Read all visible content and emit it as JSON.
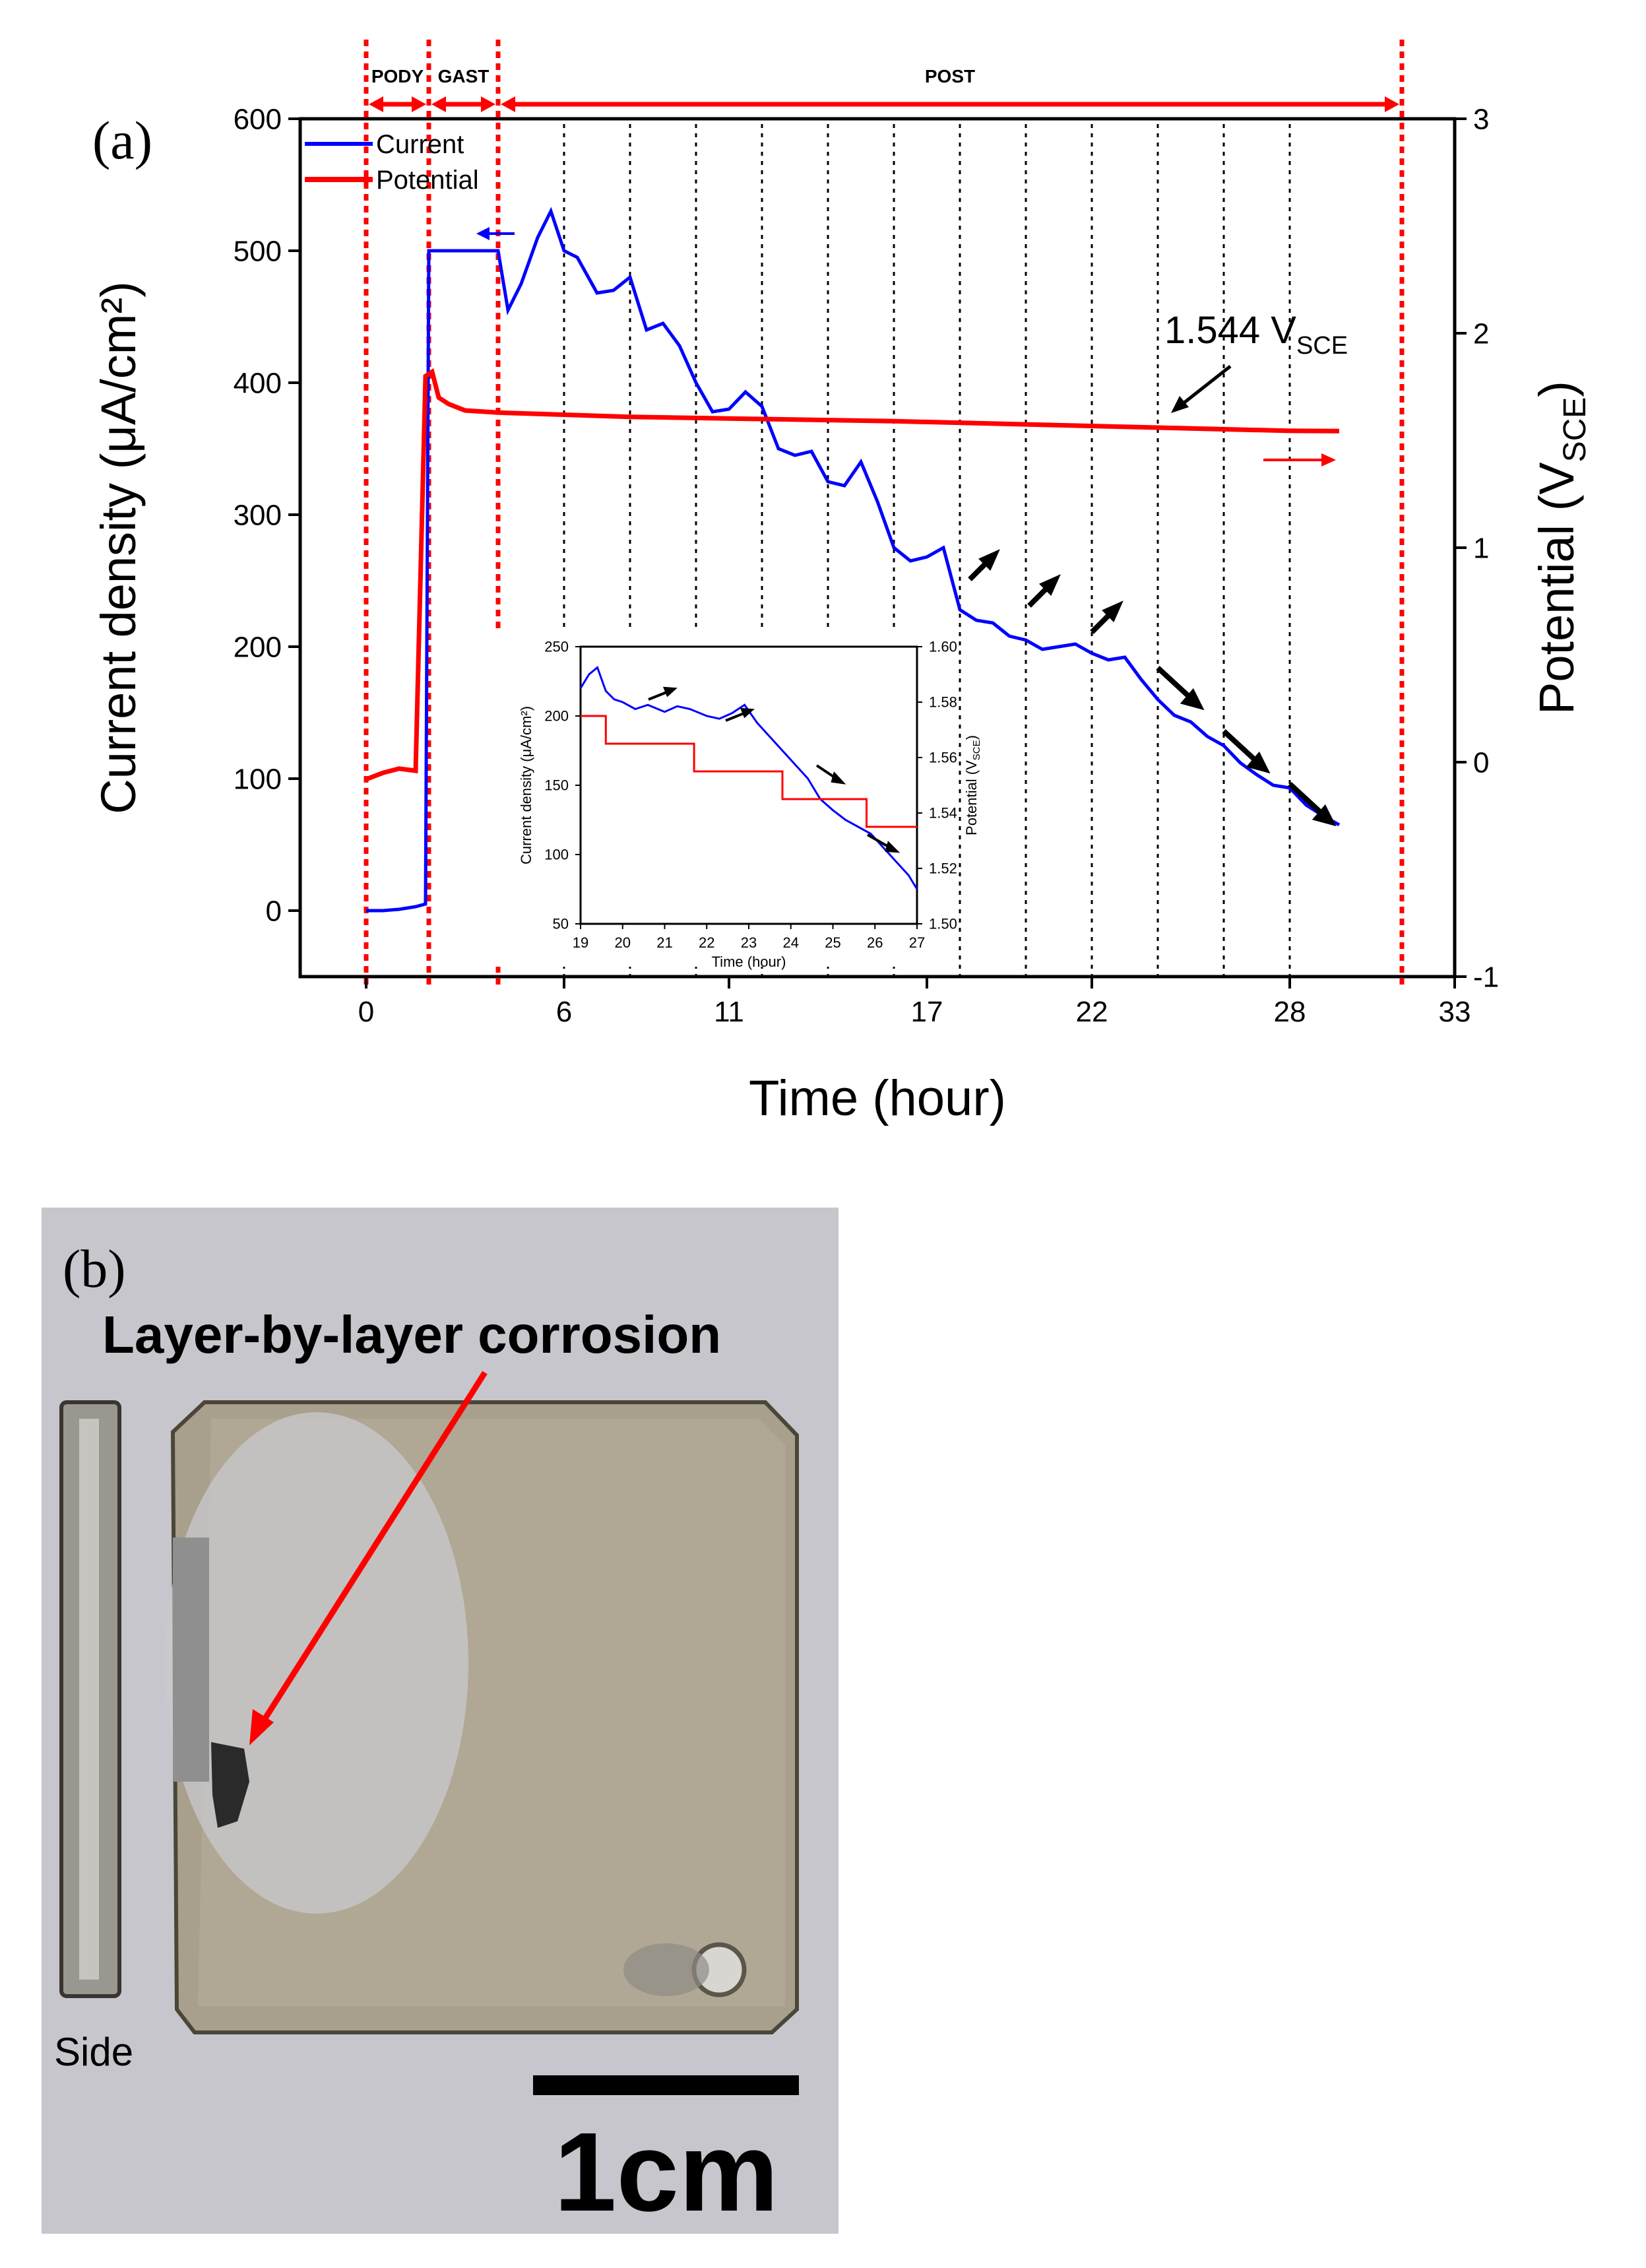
{
  "panel_a": {
    "label": "(a)"
  },
  "panel_b": {
    "label": "(b)",
    "annotation": "Layer-by-layer corrosion",
    "side_label": "Side",
    "scale_label": "1cm",
    "colors": {
      "annotation": "#ff0000",
      "background": "#c6c6cc",
      "sample": "#a8a08c"
    }
  },
  "chart_data": [
    {
      "type": "line",
      "title": "",
      "xlabel": "Time (hour)",
      "ylabel": "Current density (μA/cm²)",
      "ylabel_right": "Potential (V",
      "ylabel_right_sub": "SCE",
      "ylabel_right_end": ")",
      "xlim": [
        -2,
        33
      ],
      "ylim": [
        -50,
        600
      ],
      "ylim_right": [
        -1,
        3
      ],
      "xticks": [
        0,
        6,
        11,
        17,
        22,
        28,
        33
      ],
      "yticks": [
        0,
        100,
        200,
        300,
        400,
        500,
        600
      ],
      "yticks_right": [
        -1,
        0,
        1,
        2,
        3
      ],
      "grid": false,
      "legend": {
        "placement": "top-left",
        "entries": [
          "Current",
          "Potential"
        ]
      },
      "colors": {
        "Current": "#0000ff",
        "Potential": "#ff0000",
        "phase": "#ff0000"
      },
      "phases": [
        {
          "label": "PODY",
          "start": 0,
          "end": 1.9
        },
        {
          "label": "GAST",
          "start": 1.9,
          "end": 4
        },
        {
          "label": "POST",
          "start": 4,
          "end": 31.4
        }
      ],
      "dotted_lines_x": [
        6,
        8,
        10,
        12,
        14,
        16,
        18,
        20,
        22,
        24,
        26,
        28
      ],
      "annotations": [
        {
          "text": "1.544 V",
          "sub": "SCE"
        }
      ],
      "series": [
        {
          "name": "Current",
          "axis": "left",
          "x": [
            0,
            0.5,
            1,
            1.5,
            1.8,
            1.9,
            2,
            3,
            4,
            4.3,
            4.7,
            5.2,
            5.6,
            6,
            6.4,
            7,
            7.5,
            8,
            8.5,
            9,
            9.5,
            10,
            10.5,
            11,
            11.5,
            12,
            12.5,
            13,
            13.5,
            14,
            14.5,
            15,
            15.5,
            16,
            16.5,
            17,
            17.5,
            18,
            18.5,
            19,
            19.5,
            20,
            20.5,
            21,
            21.5,
            22,
            22.5,
            23,
            23.5,
            24,
            24.5,
            25,
            25.5,
            26,
            26.5,
            27,
            27.5,
            28,
            28.5,
            29,
            29.5
          ],
          "y": [
            0,
            0,
            1,
            3,
            5,
            500,
            500,
            500,
            500,
            455,
            475,
            510,
            530,
            500,
            495,
            468,
            470,
            480,
            440,
            445,
            428,
            400,
            378,
            380,
            393,
            382,
            350,
            345,
            348,
            325,
            322,
            340,
            310,
            275,
            265,
            268,
            275,
            228,
            220,
            218,
            208,
            205,
            198,
            200,
            202,
            195,
            190,
            192,
            175,
            160,
            148,
            143,
            132,
            125,
            112,
            103,
            95,
            93,
            80,
            72,
            65
          ]
        },
        {
          "name": "Potential",
          "axis": "right",
          "x": [
            0,
            0.5,
            1,
            1.5,
            1.8,
            2,
            2.2,
            2.5,
            3,
            4,
            8,
            12,
            16,
            20,
            24,
            28,
            29.5
          ],
          "y": [
            -0.08,
            -0.05,
            -0.03,
            -0.04,
            1.8,
            1.82,
            1.7,
            1.67,
            1.64,
            1.63,
            1.61,
            1.6,
            1.59,
            1.575,
            1.56,
            1.545,
            1.544
          ]
        }
      ]
    },
    {
      "type": "line",
      "title": "",
      "xlabel": "Time (hour)",
      "ylabel": "Current density (μA/cm²)",
      "ylabel_right": "Potential (V",
      "ylabel_right_sub": "SCE",
      "ylabel_right_end": ")",
      "xlim": [
        19,
        27
      ],
      "ylim": [
        50,
        250
      ],
      "ylim_right": [
        1.5,
        1.6
      ],
      "xticks": [
        19,
        20,
        21,
        22,
        23,
        24,
        25,
        26,
        27
      ],
      "yticks": [
        50,
        100,
        150,
        200,
        250
      ],
      "yticks_right": [
        1.5,
        1.52,
        1.54,
        1.56,
        1.58,
        1.6
      ],
      "grid": false,
      "series": [
        {
          "name": "Current",
          "axis": "left",
          "x": [
            19,
            19.2,
            19.4,
            19.6,
            19.8,
            20,
            20.3,
            20.6,
            21,
            21.3,
            21.6,
            22,
            22.3,
            22.6,
            22.9,
            23.2,
            23.5,
            23.8,
            24.1,
            24.4,
            24.7,
            25,
            25.3,
            25.6,
            25.9,
            26.2,
            26.5,
            26.8,
            27
          ],
          "y": [
            220,
            230,
            235,
            218,
            212,
            210,
            205,
            208,
            203,
            207,
            205,
            200,
            198,
            202,
            208,
            195,
            185,
            175,
            165,
            155,
            140,
            132,
            125,
            120,
            115,
            105,
            95,
            85,
            75
          ]
        },
        {
          "name": "Potential",
          "axis": "right",
          "x": [
            19,
            19.6,
            19.6,
            21.7,
            21.7,
            23.8,
            23.8,
            25.8,
            25.8,
            27
          ],
          "y": [
            1.575,
            1.575,
            1.565,
            1.565,
            1.555,
            1.555,
            1.545,
            1.545,
            1.535,
            1.535
          ]
        }
      ]
    }
  ]
}
